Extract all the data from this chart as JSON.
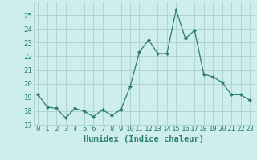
{
  "x": [
    0,
    1,
    2,
    3,
    4,
    5,
    6,
    7,
    8,
    9,
    10,
    11,
    12,
    13,
    14,
    15,
    16,
    17,
    18,
    19,
    20,
    21,
    22,
    23
  ],
  "y": [
    19.2,
    18.3,
    18.2,
    17.5,
    18.2,
    18.0,
    17.6,
    18.1,
    17.7,
    18.1,
    19.8,
    22.3,
    23.2,
    22.2,
    22.2,
    25.4,
    23.3,
    23.9,
    20.7,
    20.5,
    20.1,
    19.2,
    19.2,
    18.8
  ],
  "xlabel": "Humidex (Indice chaleur)",
  "line_color": "#2e7d6e",
  "marker_color": "#2e7d6e",
  "bg_color": "#cdeeed",
  "grid_color": "#aacfcf",
  "ylim": [
    17,
    26
  ],
  "yticks": [
    17,
    18,
    19,
    20,
    21,
    22,
    23,
    24,
    25
  ],
  "xticks": [
    0,
    1,
    2,
    3,
    4,
    5,
    6,
    7,
    8,
    9,
    10,
    11,
    12,
    13,
    14,
    15,
    16,
    17,
    18,
    19,
    20,
    21,
    22,
    23
  ],
  "tick_color": "#2e7d6e",
  "xlabel_fontsize": 7.5,
  "tick_fontsize": 6.5
}
